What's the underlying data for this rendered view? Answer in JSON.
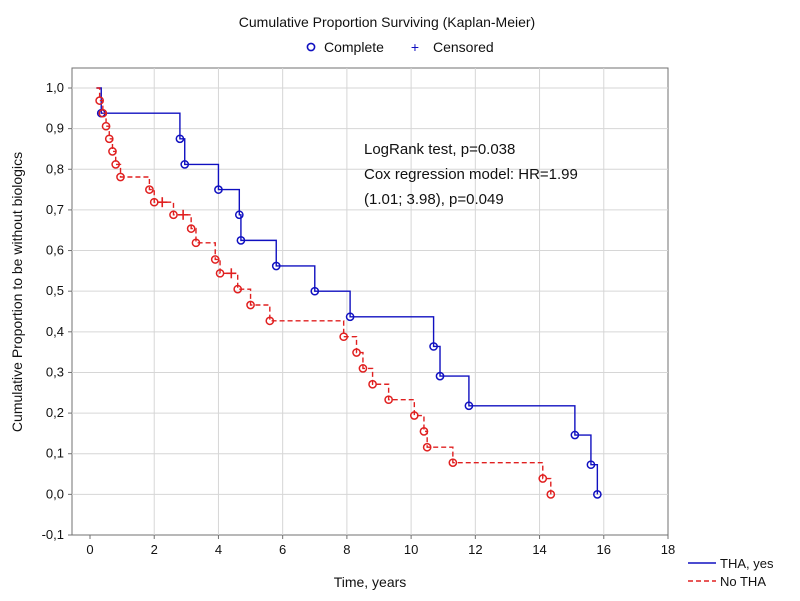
{
  "chart_data": {
    "type": "line",
    "title": "Cumulative Proportion Surviving (Kaplan-Meier)",
    "marker_legend": {
      "complete_label": "Complete",
      "censored_label": "Censored",
      "complete_symbol": "o",
      "censored_symbol": "+"
    },
    "xlabel": "Time, years",
    "ylabel": "Cumulative Proportion to be without biologics",
    "xlim": [
      0,
      18
    ],
    "ylim": [
      -0.1,
      1.0
    ],
    "x_ticks": [
      "0",
      "2",
      "4",
      "6",
      "8",
      "10",
      "12",
      "14",
      "16",
      "18"
    ],
    "y_ticks": [
      "-0,1",
      "0,0",
      "0,1",
      "0,2",
      "0,3",
      "0,4",
      "0,5",
      "0,6",
      "0,7",
      "0,8",
      "0,9",
      "1,0"
    ],
    "grid": true,
    "annotation_lines": [
      "LogRank test, p=0.038",
      "Cox regression model: HR=1.99",
      "(1.01; 3.98), p=0.049"
    ],
    "legend_position": "bottom-right",
    "series": [
      {
        "name": "THA, yes",
        "color": "#1010c0",
        "line_style": "solid",
        "start": [
          0.2,
          1.0
        ],
        "steps": [
          [
            0.35,
            0.938
          ],
          [
            2.8,
            0.875
          ],
          [
            2.95,
            0.812
          ],
          [
            4.0,
            0.75
          ],
          [
            4.65,
            0.688
          ],
          [
            4.7,
            0.625
          ],
          [
            5.8,
            0.562
          ],
          [
            7.0,
            0.5
          ],
          [
            8.1,
            0.437
          ],
          [
            10.7,
            0.364
          ],
          [
            10.9,
            0.291
          ],
          [
            11.8,
            0.218
          ],
          [
            15.1,
            0.146
          ],
          [
            15.6,
            0.073
          ],
          [
            15.8,
            0.0
          ]
        ],
        "events": [
          [
            0.35,
            0.938
          ],
          [
            2.8,
            0.875
          ],
          [
            2.95,
            0.812
          ],
          [
            4.0,
            0.75
          ],
          [
            4.65,
            0.688
          ],
          [
            4.7,
            0.625
          ],
          [
            5.8,
            0.562
          ],
          [
            7.0,
            0.5
          ],
          [
            8.1,
            0.437
          ],
          [
            10.7,
            0.364
          ],
          [
            10.9,
            0.291
          ],
          [
            11.8,
            0.218
          ],
          [
            15.1,
            0.146
          ],
          [
            15.6,
            0.073
          ],
          [
            15.8,
            0.0
          ]
        ],
        "censored": []
      },
      {
        "name": "No THA",
        "color": "#e02020",
        "line_style": "dashed",
        "start": [
          0.2,
          1.0
        ],
        "steps": [
          [
            0.3,
            0.969
          ],
          [
            0.4,
            0.938
          ],
          [
            0.5,
            0.906
          ],
          [
            0.6,
            0.875
          ],
          [
            0.7,
            0.844
          ],
          [
            0.8,
            0.812
          ],
          [
            0.95,
            0.781
          ],
          [
            1.85,
            0.75
          ],
          [
            2.0,
            0.719
          ],
          [
            2.6,
            0.688
          ],
          [
            3.15,
            0.654
          ],
          [
            3.3,
            0.619
          ],
          [
            3.9,
            0.578
          ],
          [
            4.05,
            0.544
          ],
          [
            4.6,
            0.505
          ],
          [
            5.0,
            0.466
          ],
          [
            5.6,
            0.427
          ],
          [
            7.9,
            0.388
          ],
          [
            8.3,
            0.349
          ],
          [
            8.5,
            0.31
          ],
          [
            8.8,
            0.271
          ],
          [
            9.3,
            0.233
          ],
          [
            10.1,
            0.194
          ],
          [
            10.4,
            0.155
          ],
          [
            10.5,
            0.116
          ],
          [
            11.3,
            0.078
          ],
          [
            14.1,
            0.039
          ],
          [
            14.35,
            0.0
          ]
        ],
        "events": [
          [
            0.3,
            0.969
          ],
          [
            0.4,
            0.938
          ],
          [
            0.5,
            0.906
          ],
          [
            0.6,
            0.875
          ],
          [
            0.7,
            0.844
          ],
          [
            0.8,
            0.812
          ],
          [
            0.95,
            0.781
          ],
          [
            1.85,
            0.75
          ],
          [
            2.0,
            0.719
          ],
          [
            2.6,
            0.688
          ],
          [
            3.15,
            0.654
          ],
          [
            3.3,
            0.619
          ],
          [
            3.9,
            0.578
          ],
          [
            4.05,
            0.544
          ],
          [
            4.6,
            0.505
          ],
          [
            5.0,
            0.466
          ],
          [
            5.6,
            0.427
          ],
          [
            7.9,
            0.388
          ],
          [
            8.3,
            0.349
          ],
          [
            8.5,
            0.31
          ],
          [
            8.8,
            0.271
          ],
          [
            9.3,
            0.233
          ],
          [
            10.1,
            0.194
          ],
          [
            10.4,
            0.155
          ],
          [
            10.5,
            0.116
          ],
          [
            11.3,
            0.078
          ],
          [
            14.1,
            0.039
          ],
          [
            14.35,
            0.0
          ]
        ],
        "censored": [
          [
            2.25,
            0.719
          ],
          [
            2.9,
            0.688
          ],
          [
            4.4,
            0.544
          ]
        ]
      }
    ]
  }
}
